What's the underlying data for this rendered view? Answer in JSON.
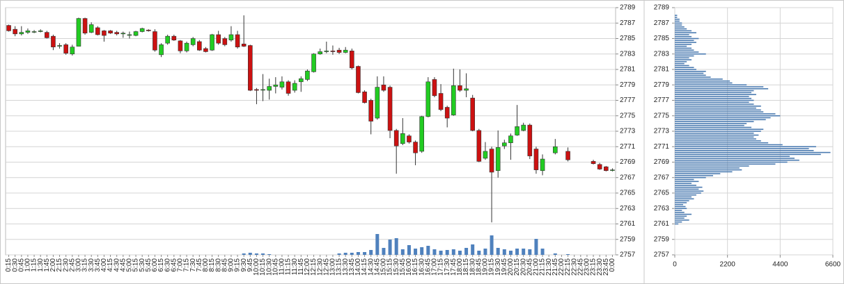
{
  "chart_data": [
    {
      "type": "candlestick",
      "categories": [
        "0:15",
        "0:30",
        "0:45",
        "1:00",
        "1:15",
        "1:30",
        "1:45",
        "2:00",
        "2:15",
        "2:30",
        "2:45",
        "3:00",
        "3:15",
        "3:30",
        "3:45",
        "4:00",
        "4:15",
        "4:30",
        "4:45",
        "5:00",
        "5:15",
        "5:30",
        "5:45",
        "6:00",
        "6:15",
        "6:30",
        "6:45",
        "7:00",
        "7:15",
        "7:30",
        "7:45",
        "8:00",
        "8:15",
        "8:30",
        "8:45",
        "9:00",
        "9:15",
        "9:30",
        "9:45",
        "10:00",
        "10:15",
        "10:30",
        "10:45",
        "11:00",
        "11:15",
        "11:30",
        "11:45",
        "12:00",
        "12:15",
        "12:30",
        "12:45",
        "13:00",
        "13:15",
        "13:30",
        "13:45",
        "14:00",
        "14:15",
        "14:30",
        "14:45",
        "15:00",
        "15:15",
        "15:30",
        "15:45",
        "16:00",
        "16:15",
        "16:30",
        "16:45",
        "17:00",
        "17:15",
        "17:30",
        "17:45",
        "18:00",
        "18:15",
        "18:30",
        "18:45",
        "19:00",
        "19:15",
        "19:30",
        "19:45",
        "20:00",
        "20:15",
        "20:30",
        "20:45",
        "21:00",
        "21:15",
        "21:30",
        "21:45",
        "22:00",
        "22:15",
        "22:30",
        "22:45",
        "23:00",
        "23:15",
        "23:30",
        "23:45",
        "0:00"
      ],
      "ohlc": [
        [
          2786.7,
          2786.8,
          2785.9,
          2786.0
        ],
        [
          2786.2,
          2786.6,
          2785.3,
          2785.6
        ],
        [
          2785.6,
          2786.6,
          2785.4,
          2785.8
        ],
        [
          2785.8,
          2786.3,
          2785.6,
          2786.0
        ],
        [
          2785.9,
          2786.1,
          2785.7,
          2785.9
        ],
        [
          2785.9,
          2786.2,
          2785.8,
          2786.0
        ],
        [
          2785.8,
          2786.0,
          2785.0,
          2785.1
        ],
        [
          2785.3,
          2785.5,
          2783.5,
          2783.9
        ],
        [
          2784.0,
          2784.4,
          2783.7,
          2784.1
        ],
        [
          2784.2,
          2784.4,
          2782.9,
          2783.1
        ],
        [
          2783.0,
          2784.2,
          2782.8,
          2783.9
        ],
        [
          2784.0,
          2787.7,
          2784.0,
          2787.6
        ],
        [
          2787.6,
          2787.7,
          2785.5,
          2785.7
        ],
        [
          2785.8,
          2787.1,
          2785.7,
          2786.8
        ],
        [
          2786.4,
          2786.6,
          2785.4,
          2785.5
        ],
        [
          2786.0,
          2786.1,
          2784.6,
          2785.4
        ],
        [
          2786.0,
          2786.1,
          2785.6,
          2785.7
        ],
        [
          2785.8,
          2786.0,
          2785.4,
          2785.6
        ],
        [
          2785.6,
          2785.9,
          2785.1,
          2785.7
        ],
        [
          2785.5,
          2785.9,
          2785.0,
          2785.5
        ],
        [
          2785.4,
          2786.0,
          2785.3,
          2785.9
        ],
        [
          2785.9,
          2786.4,
          2785.8,
          2786.3
        ],
        [
          2786.1,
          2786.2,
          2785.9,
          2786.0
        ],
        [
          2785.9,
          2786.2,
          2783.3,
          2783.5
        ],
        [
          2782.9,
          2784.4,
          2782.6,
          2784.2
        ],
        [
          2784.4,
          2785.5,
          2784.2,
          2785.3
        ],
        [
          2785.3,
          2785.5,
          2784.7,
          2784.8
        ],
        [
          2784.7,
          2784.8,
          2783.1,
          2783.4
        ],
        [
          2783.4,
          2784.6,
          2783.2,
          2784.4
        ],
        [
          2784.2,
          2785.2,
          2784.0,
          2785.0
        ],
        [
          2784.6,
          2784.8,
          2783.4,
          2783.5
        ],
        [
          2783.7,
          2783.9,
          2783.2,
          2783.3
        ],
        [
          2783.5,
          2785.6,
          2783.4,
          2785.5
        ],
        [
          2785.5,
          2786.0,
          2784.2,
          2784.4
        ],
        [
          2785.0,
          2785.2,
          2784.0,
          2784.2
        ],
        [
          2784.8,
          2786.6,
          2784.6,
          2785.5
        ],
        [
          2785.5,
          2786.0,
          2783.7,
          2783.9
        ],
        [
          2784.3,
          2788.0,
          2783.9,
          2784.0
        ],
        [
          2784.1,
          2784.2,
          2778.2,
          2778.3
        ],
        [
          2778.4,
          2778.6,
          2776.5,
          2778.3
        ],
        [
          2778.4,
          2780.4,
          2776.9,
          2778.4
        ],
        [
          2778.3,
          2779.8,
          2777.1,
          2778.8
        ],
        [
          2778.8,
          2780.0,
          2777.9,
          2779.0
        ],
        [
          2778.7,
          2780.1,
          2778.4,
          2779.4
        ],
        [
          2779.4,
          2779.6,
          2777.6,
          2777.9
        ],
        [
          2778.3,
          2779.6,
          2778.0,
          2779.2
        ],
        [
          2779.4,
          2780.1,
          2778.1,
          2779.8
        ],
        [
          2779.7,
          2781.0,
          2779.5,
          2780.8
        ],
        [
          2780.7,
          2783.1,
          2780.6,
          2783.0
        ],
        [
          2783.0,
          2783.7,
          2782.9,
          2783.3
        ],
        [
          2783.3,
          2784.6,
          2783.1,
          2783.4
        ],
        [
          2783.4,
          2784.1,
          2782.9,
          2783.3
        ],
        [
          2783.5,
          2783.8,
          2783.0,
          2783.2
        ],
        [
          2783.2,
          2783.9,
          2783.1,
          2783.5
        ],
        [
          2783.4,
          2783.7,
          2781.0,
          2781.2
        ],
        [
          2781.4,
          2781.5,
          2777.9,
          2778.0
        ],
        [
          2778.1,
          2778.3,
          2776.6,
          2776.7
        ],
        [
          2777.0,
          2777.2,
          2772.6,
          2774.3
        ],
        [
          2774.7,
          2780.1,
          2774.5,
          2778.7
        ],
        [
          2779.0,
          2780.1,
          2778.1,
          2778.3
        ],
        [
          2778.7,
          2778.9,
          2772.1,
          2773.1
        ],
        [
          2773.1,
          2773.3,
          2767.5,
          2771.1
        ],
        [
          2771.4,
          2774.7,
          2771.2,
          2772.7
        ],
        [
          2772.4,
          2772.6,
          2771.4,
          2771.6
        ],
        [
          2771.6,
          2771.8,
          2768.6,
          2770.2
        ],
        [
          2770.4,
          2775.0,
          2770.2,
          2774.9
        ],
        [
          2774.9,
          2780.0,
          2774.8,
          2779.4
        ],
        [
          2779.7,
          2780.0,
          2777.4,
          2777.6
        ],
        [
          2777.9,
          2779.1,
          2775.6,
          2775.8
        ],
        [
          2776.1,
          2776.3,
          2773.5,
          2774.7
        ],
        [
          2775.1,
          2781.1,
          2775.0,
          2778.9
        ],
        [
          2778.9,
          2781.0,
          2778.1,
          2778.3
        ],
        [
          2778.3,
          2780.5,
          2777.4,
          2778.5
        ],
        [
          2777.3,
          2777.7,
          2773.0,
          2773.1
        ],
        [
          2773.1,
          2773.3,
          2769.0,
          2769.1
        ],
        [
          2769.5,
          2771.6,
          2769.3,
          2770.4
        ],
        [
          2770.7,
          2771.0,
          2761.2,
          2767.7
        ],
        [
          2767.9,
          2773.1,
          2767.0,
          2770.9
        ],
        [
          2771.1,
          2771.9,
          2770.7,
          2771.5
        ],
        [
          2771.5,
          2772.7,
          2769.3,
          2772.4
        ],
        [
          2772.5,
          2776.4,
          2772.4,
          2773.6
        ],
        [
          2773.1,
          2774.1,
          2773.0,
          2773.8
        ],
        [
          2773.8,
          2774.0,
          2769.4,
          2769.8
        ],
        [
          2770.7,
          2771.0,
          2767.5,
          2768.0
        ],
        [
          2767.9,
          2770.0,
          2767.3,
          2769.4
        ],
        null,
        [
          2770.2,
          2772.0,
          2770.0,
          2771.0
        ],
        null,
        [
          2770.4,
          2770.9,
          2769.1,
          2769.3
        ],
        null,
        null,
        null,
        [
          2769.1,
          2769.3,
          2768.7,
          2768.8
        ],
        [
          2768.7,
          2768.9,
          2768.0,
          2768.1
        ],
        [
          2768.4,
          2768.5,
          2767.8,
          2767.9
        ],
        [
          2768.0,
          2768.2,
          2767.8,
          2768.0
        ]
      ],
      "volume": [
        null,
        null,
        null,
        null,
        null,
        null,
        null,
        null,
        null,
        null,
        null,
        null,
        null,
        null,
        null,
        null,
        null,
        null,
        null,
        null,
        null,
        null,
        null,
        null,
        null,
        null,
        null,
        null,
        null,
        null,
        null,
        null,
        null,
        null,
        null,
        null,
        null,
        2,
        3,
        2,
        2,
        1,
        null,
        null,
        null,
        null,
        null,
        null,
        null,
        null,
        null,
        null,
        2,
        3,
        3,
        4,
        4,
        7,
        30,
        10,
        22,
        24,
        8,
        14,
        9,
        11,
        13,
        8,
        6,
        7,
        8,
        6,
        10,
        15,
        6,
        9,
        28,
        10,
        8,
        6,
        9,
        9,
        8,
        23,
        9,
        null,
        2,
        null,
        1,
        null,
        null,
        null,
        null,
        null,
        null,
        null
      ],
      "up_color": "#22cc22",
      "down_color": "#cc1111",
      "volume_color": "#4f81bd",
      "ylim": [
        2757,
        2789
      ],
      "yticks": [
        2757,
        2759,
        2761,
        2763,
        2765,
        2767,
        2769,
        2771,
        2773,
        2775,
        2777,
        2779,
        2781,
        2783,
        2785,
        2787,
        2789
      ],
      "grid": true
    },
    {
      "type": "hbar",
      "levels": [
        2761,
        2761.25,
        2761.5,
        2761.75,
        2762,
        2762.25,
        2762.5,
        2762.75,
        2763,
        2763.25,
        2763.5,
        2763.75,
        2764,
        2764.25,
        2764.5,
        2764.75,
        2765,
        2765.25,
        2765.5,
        2765.75,
        2766,
        2766.25,
        2766.5,
        2766.75,
        2767,
        2767.25,
        2767.5,
        2767.75,
        2768,
        2768.25,
        2768.5,
        2768.75,
        2769,
        2769.25,
        2769.5,
        2769.75,
        2770,
        2770.25,
        2770.5,
        2770.75,
        2771,
        2771.25,
        2771.5,
        2771.75,
        2772,
        2772.25,
        2772.5,
        2772.75,
        2773,
        2773.25,
        2773.5,
        2773.75,
        2774,
        2774.25,
        2774.5,
        2774.75,
        2775,
        2775.25,
        2775.5,
        2775.75,
        2776,
        2776.25,
        2776.5,
        2776.75,
        2777,
        2777.25,
        2777.5,
        2777.75,
        2778,
        2778.25,
        2778.5,
        2778.75,
        2779,
        2779.25,
        2779.5,
        2779.75,
        2780,
        2780.25,
        2780.5,
        2780.75,
        2781,
        2781.25,
        2781.5,
        2781.75,
        2782,
        2782.25,
        2782.5,
        2782.75,
        2783,
        2783.25,
        2783.5,
        2783.75,
        2784,
        2784.25,
        2784.5,
        2784.75,
        2785,
        2785.25,
        2785.5,
        2785.75,
        2786,
        2786.25,
        2786.5,
        2786.75,
        2787,
        2787.25,
        2787.5,
        2787.75,
        2788
      ],
      "values": [
        150,
        300,
        600,
        400,
        500,
        700,
        400,
        300,
        500,
        450,
        350,
        500,
        600,
        800,
        700,
        900,
        1100,
        1200,
        1000,
        1150,
        900,
        700,
        1000,
        800,
        1300,
        1600,
        1900,
        2400,
        2800,
        2700,
        3100,
        4200,
        4700,
        5200,
        5000,
        4800,
        6100,
        6500,
        5800,
        5600,
        5900,
        4500,
        3900,
        3600,
        3400,
        3300,
        3500,
        3300,
        3600,
        3700,
        3200,
        2900,
        3000,
        3300,
        3800,
        4000,
        4400,
        4200,
        3700,
        3600,
        3400,
        3600,
        3300,
        3100,
        3300,
        3200,
        3100,
        3400,
        3200,
        3300,
        3900,
        3700,
        3000,
        2400,
        2300,
        2000,
        1500,
        1300,
        1200,
        1300,
        900,
        800,
        600,
        400,
        500,
        700,
        600,
        800,
        1300,
        1000,
        800,
        700,
        500,
        700,
        900,
        800,
        1000,
        700,
        600,
        900,
        700,
        500,
        400,
        300,
        300,
        200,
        200,
        100,
        100
      ],
      "color": "#4a7ab0",
      "xlim": [
        0,
        6600
      ],
      "xticks": [
        0,
        2200,
        4400,
        6600
      ],
      "ylim": [
        2757,
        2789
      ],
      "yticks": [
        2757,
        2759,
        2761,
        2763,
        2765,
        2767,
        2769,
        2771,
        2773,
        2775,
        2777,
        2779,
        2781,
        2783,
        2785,
        2787,
        2789
      ],
      "grid": true
    }
  ]
}
